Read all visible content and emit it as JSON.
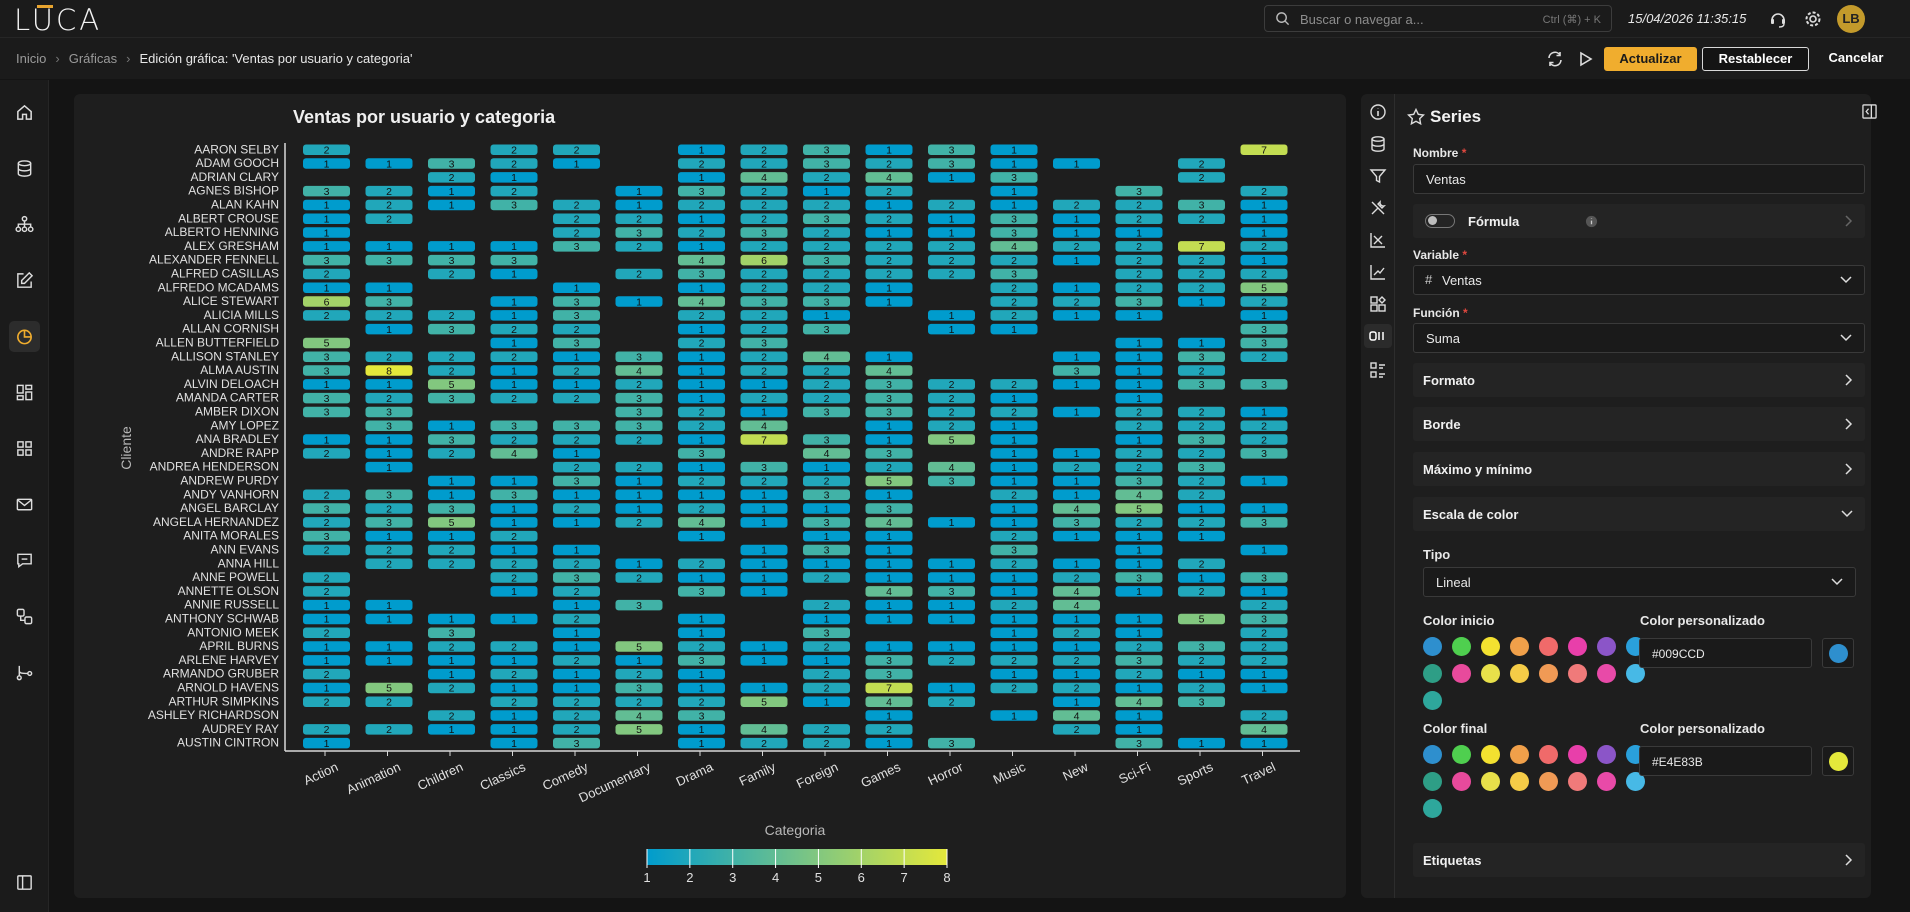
{
  "app": {
    "logo": "LUCA",
    "search_placeholder": "Buscar o navegar a...",
    "search_shortcut": "Ctrl (⌘) + K",
    "datetime": "15/04/2026 11:35:15",
    "user_initials": "LB"
  },
  "breadcrumb": {
    "items": [
      "Inicio",
      "Gráficas"
    ],
    "current": "Edición gráfica: 'Ventas por usuario y categoria'"
  },
  "toolbar": {
    "update": "Actualizar",
    "reset": "Restablecer",
    "cancel": "Cancelar"
  },
  "sidenav": {
    "icons": [
      "home-icon",
      "database-icon",
      "hierarchy-icon",
      "edit-icon",
      "chart-pie-icon",
      "dashboard-icon",
      "apps-icon",
      "mail-icon",
      "chat-icon",
      "shapes-icon",
      "flow-icon",
      "panel-collapse-icon"
    ],
    "active": "chart-pie-icon"
  },
  "panel": {
    "title": "Series",
    "nombre_label": "Nombre",
    "nombre_value": "Ventas",
    "formula_label": "Fórmula",
    "variable_label": "Variable",
    "variable_value": "Ventas",
    "funcion_label": "Función",
    "funcion_value": "Suma",
    "sections": [
      "Formato",
      "Borde",
      "Máximo y mínimo",
      "Escala de color"
    ],
    "tipo_label": "Tipo",
    "tipo_value": "Lineal",
    "color_inicio_label": "Color inicio",
    "color_final_label": "Color final",
    "custom_label": "Color personalizado",
    "color_inicio": "#009CCD",
    "color_final": "#E4E83B",
    "etiquetas": "Etiquetas",
    "swatch_colors": [
      "#2e8fce",
      "#4fcf4f",
      "#f3e130",
      "#f0a04a",
      "#f06a6a",
      "#e83faa",
      "#8b55c8",
      "#2aa0db",
      "#2e9e86",
      "#e84a9c",
      "#e8e04a",
      "#f5cc47",
      "#f09a55",
      "#f07a7a",
      "#e84aa8",
      "#47b9e6",
      "#2ea79c"
    ]
  },
  "chart_data": {
    "type": "heatmap",
    "title": "Ventas por usuario y categoria",
    "xlabel": "Categoria",
    "ylabel": "Cliente",
    "x": [
      "Action",
      "Animation",
      "Children",
      "Classics",
      "Comedy",
      "Documentary",
      "Drama",
      "Family",
      "Foreign",
      "Games",
      "Horror",
      "Music",
      "New",
      "Sci-Fi",
      "Sports",
      "Travel"
    ],
    "y": [
      "AARON SELBY",
      "ADAM GOOCH",
      "ADRIAN CLARY",
      "AGNES BISHOP",
      "ALAN KAHN",
      "ALBERT CROUSE",
      "ALBERTO HENNING",
      "ALEX GRESHAM",
      "ALEXANDER FENNELL",
      "ALFRED CASILLAS",
      "ALFREDO MCADAMS",
      "ALICE STEWART",
      "ALICIA MILLS",
      "ALLAN CORNISH",
      "ALLEN BUTTERFIELD",
      "ALLISON STANLEY",
      "ALMA AUSTIN",
      "ALVIN DELOACH",
      "AMANDA CARTER",
      "AMBER DIXON",
      "AMY LOPEZ",
      "ANA BRADLEY",
      "ANDRE RAPP",
      "ANDREA HENDERSON",
      "ANDREW PURDY",
      "ANDY VANHORN",
      "ANGEL BARCLAY",
      "ANGELA HERNANDEZ",
      "ANITA MORALES",
      "ANN EVANS",
      "ANNA HILL",
      "ANNE POWELL",
      "ANNETTE OLSON",
      "ANNIE RUSSELL",
      "ANTHONY SCHWAB",
      "ANTONIO MEEK",
      "APRIL BURNS",
      "ARLENE HARVEY",
      "ARMANDO GRUBER",
      "ARNOLD HAVENS",
      "ARTHUR SIMPKINS",
      "ASHLEY RICHARDSON",
      "AUDREY RAY",
      "AUSTIN CINTRON"
    ],
    "z": [
      [
        2,
        0,
        0,
        2,
        2,
        0,
        1,
        2,
        3,
        1,
        3,
        1,
        0,
        0,
        0,
        7
      ],
      [
        1,
        1,
        3,
        2,
        1,
        0,
        2,
        2,
        3,
        2,
        3,
        1,
        1,
        0,
        2,
        0
      ],
      [
        0,
        0,
        2,
        1,
        0,
        0,
        1,
        4,
        2,
        4,
        1,
        3,
        0,
        0,
        2,
        0
      ],
      [
        3,
        2,
        1,
        2,
        0,
        1,
        3,
        2,
        1,
        2,
        0,
        1,
        0,
        3,
        0,
        2
      ],
      [
        1,
        2,
        1,
        3,
        2,
        1,
        2,
        2,
        2,
        1,
        2,
        1,
        2,
        2,
        3,
        1
      ],
      [
        1,
        2,
        0,
        0,
        2,
        2,
        1,
        2,
        3,
        2,
        1,
        3,
        1,
        2,
        2,
        1
      ],
      [
        1,
        0,
        0,
        0,
        2,
        3,
        2,
        3,
        2,
        1,
        1,
        3,
        1,
        1,
        0,
        1
      ],
      [
        1,
        1,
        1,
        1,
        3,
        2,
        1,
        2,
        2,
        2,
        2,
        4,
        2,
        2,
        7,
        2
      ],
      [
        3,
        3,
        3,
        3,
        0,
        0,
        4,
        6,
        3,
        2,
        2,
        2,
        1,
        2,
        2,
        1
      ],
      [
        2,
        0,
        2,
        1,
        0,
        2,
        3,
        2,
        2,
        2,
        2,
        3,
        0,
        2,
        2,
        2
      ],
      [
        1,
        1,
        0,
        0,
        1,
        0,
        1,
        2,
        2,
        1,
        0,
        2,
        1,
        2,
        2,
        5
      ],
      [
        6,
        3,
        0,
        1,
        3,
        1,
        4,
        3,
        3,
        1,
        0,
        2,
        2,
        3,
        1,
        2
      ],
      [
        2,
        2,
        2,
        1,
        3,
        0,
        2,
        2,
        1,
        0,
        1,
        2,
        1,
        1,
        0,
        1
      ],
      [
        0,
        1,
        3,
        2,
        2,
        0,
        1,
        2,
        3,
        0,
        1,
        1,
        0,
        0,
        0,
        3
      ],
      [
        5,
        0,
        0,
        1,
        3,
        0,
        2,
        3,
        0,
        0,
        0,
        0,
        0,
        1,
        1,
        3
      ],
      [
        3,
        2,
        2,
        2,
        1,
        3,
        1,
        2,
        4,
        1,
        0,
        0,
        1,
        1,
        3,
        2
      ],
      [
        3,
        8,
        2,
        1,
        2,
        4,
        1,
        2,
        2,
        4,
        0,
        0,
        3,
        1,
        2,
        0
      ],
      [
        1,
        1,
        5,
        1,
        1,
        2,
        1,
        1,
        2,
        3,
        2,
        2,
        1,
        1,
        3,
        3
      ],
      [
        3,
        2,
        3,
        2,
        2,
        3,
        1,
        2,
        2,
        3,
        2,
        1,
        0,
        1,
        0,
        0
      ],
      [
        3,
        3,
        0,
        0,
        0,
        3,
        2,
        1,
        3,
        3,
        2,
        2,
        1,
        2,
        2,
        1
      ],
      [
        0,
        3,
        1,
        3,
        3,
        3,
        2,
        4,
        0,
        1,
        2,
        1,
        0,
        2,
        2,
        2
      ],
      [
        1,
        1,
        3,
        2,
        2,
        2,
        1,
        7,
        3,
        1,
        5,
        1,
        0,
        1,
        3,
        2
      ],
      [
        2,
        1,
        2,
        4,
        1,
        0,
        3,
        0,
        4,
        3,
        0,
        1,
        1,
        2,
        2,
        3
      ],
      [
        0,
        1,
        0,
        0,
        2,
        2,
        1,
        3,
        1,
        2,
        4,
        1,
        2,
        2,
        3,
        0
      ],
      [
        0,
        0,
        1,
        1,
        3,
        1,
        2,
        2,
        2,
        5,
        3,
        1,
        1,
        3,
        2,
        1
      ],
      [
        2,
        3,
        1,
        3,
        1,
        1,
        1,
        1,
        3,
        1,
        0,
        2,
        1,
        4,
        2,
        0
      ],
      [
        3,
        2,
        3,
        1,
        2,
        1,
        2,
        1,
        1,
        3,
        0,
        1,
        4,
        5,
        1,
        1
      ],
      [
        2,
        3,
        5,
        1,
        1,
        2,
        4,
        1,
        3,
        4,
        1,
        1,
        3,
        2,
        2,
        3
      ],
      [
        3,
        1,
        1,
        2,
        0,
        0,
        1,
        0,
        1,
        1,
        0,
        2,
        1,
        1,
        1,
        0
      ],
      [
        2,
        2,
        2,
        1,
        1,
        0,
        0,
        1,
        3,
        1,
        0,
        3,
        0,
        1,
        0,
        1
      ],
      [
        0,
        2,
        2,
        2,
        2,
        1,
        2,
        1,
        1,
        1,
        1,
        2,
        1,
        1,
        2,
        0
      ],
      [
        2,
        0,
        0,
        2,
        3,
        2,
        1,
        1,
        2,
        1,
        1,
        1,
        2,
        3,
        1,
        3
      ],
      [
        2,
        0,
        0,
        1,
        2,
        0,
        3,
        1,
        0,
        4,
        3,
        1,
        4,
        1,
        2,
        1
      ],
      [
        1,
        1,
        0,
        0,
        1,
        3,
        0,
        0,
        2,
        1,
        1,
        2,
        4,
        0,
        0,
        2
      ],
      [
        1,
        1,
        1,
        1,
        2,
        0,
        1,
        0,
        1,
        1,
        1,
        1,
        1,
        1,
        5,
        3
      ],
      [
        2,
        0,
        3,
        0,
        1,
        0,
        1,
        0,
        3,
        0,
        0,
        1,
        2,
        1,
        0,
        2
      ],
      [
        1,
        1,
        2,
        2,
        1,
        5,
        2,
        1,
        2,
        1,
        1,
        1,
        1,
        2,
        3,
        2
      ],
      [
        1,
        1,
        1,
        1,
        2,
        1,
        3,
        1,
        1,
        3,
        2,
        2,
        2,
        3,
        2,
        2
      ],
      [
        2,
        0,
        1,
        2,
        1,
        2,
        1,
        0,
        2,
        3,
        0,
        1,
        1,
        2,
        1,
        1
      ],
      [
        1,
        5,
        2,
        1,
        1,
        3,
        1,
        1,
        2,
        7,
        1,
        2,
        2,
        1,
        2,
        1
      ],
      [
        2,
        2,
        0,
        2,
        2,
        2,
        2,
        5,
        1,
        4,
        2,
        0,
        1,
        4,
        3,
        0
      ],
      [
        0,
        0,
        2,
        1,
        2,
        4,
        3,
        0,
        0,
        1,
        0,
        1,
        4,
        1,
        0,
        2
      ],
      [
        2,
        2,
        1,
        1,
        2,
        5,
        1,
        4,
        2,
        2,
        0,
        0,
        2,
        1,
        0,
        4
      ],
      [
        1,
        0,
        0,
        1,
        3,
        0,
        1,
        2,
        2,
        1,
        3,
        0,
        0,
        3,
        1,
        1
      ]
    ],
    "zmin": 1,
    "zmax": 8,
    "colorscale": [
      "#009CCD",
      "#E4E83B"
    ],
    "colorbar_ticks": [
      1,
      2,
      3,
      4,
      5,
      6,
      7,
      8
    ],
    "colorbar_position": "bottom"
  }
}
